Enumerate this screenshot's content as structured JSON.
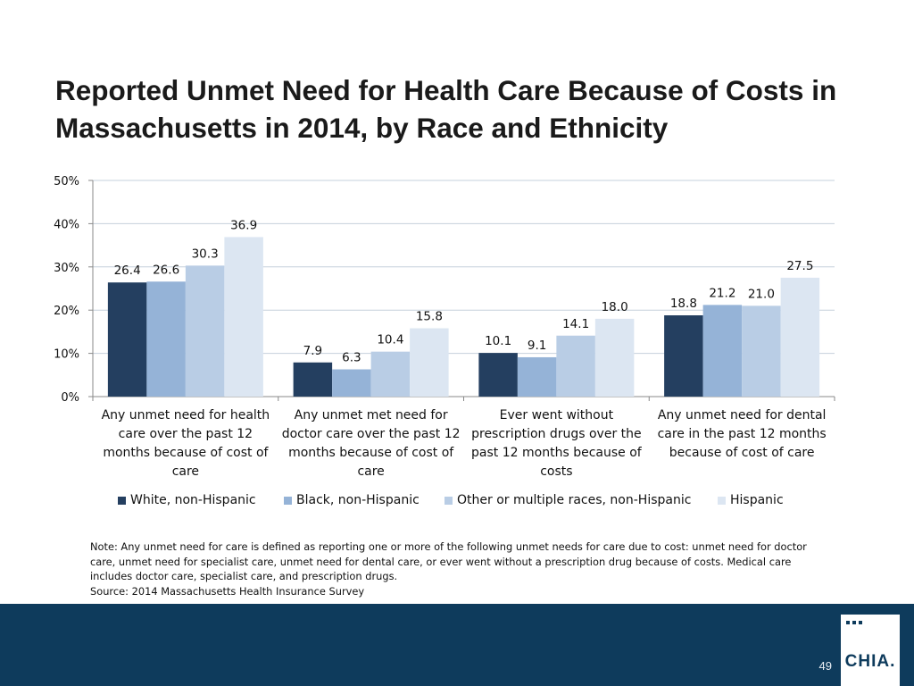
{
  "slide": {
    "title": "Reported Unmet Need for Health Care Because of Costs in Massachusetts in 2014, by Race and Ethnicity",
    "note": "Note: Any unmet need for care is defined as reporting one or more of the following unmet needs for care due to cost: unmet need for doctor care, unmet need for specialist care, unmet need for dental care, or ever went without a prescription drug because of costs. Medical care includes doctor care, specialist care, and prescription drugs.",
    "source": "Source:  2014 Massachusetts Health Insurance Survey",
    "page_number": "49",
    "logo_text": "CHIA."
  },
  "colors": {
    "series": [
      "#243f60",
      "#95b3d7",
      "#b9cde5",
      "#dce6f2"
    ],
    "grid": "#c6d0dc",
    "footer": "#0e3b5c"
  },
  "chart_data": {
    "type": "bar",
    "title": "Reported Unmet Need for Health Care Because of Costs in Massachusetts in 2014, by Race and Ethnicity",
    "categories": [
      "Any unmet need for health care over the past 12 months because of cost of care",
      "Any unmet met need for doctor care over the past 12 months because of cost of care",
      "Ever went without prescription drugs over the past 12 months because of costs",
      "Any unmet need for dental care in the past 12 months because of cost of care"
    ],
    "series": [
      {
        "name": "White, non-Hispanic",
        "values": [
          26.4,
          7.9,
          10.1,
          18.8
        ],
        "labels": [
          "26.4",
          "7.9",
          "10.1",
          "18.8"
        ]
      },
      {
        "name": "Black, non-Hispanic",
        "values": [
          26.6,
          6.3,
          9.1,
          21.2
        ],
        "labels": [
          "26.6",
          "6.3",
          "9.1",
          "21.2"
        ]
      },
      {
        "name": "Other or multiple races, non-Hispanic",
        "values": [
          30.3,
          10.4,
          14.1,
          21.0
        ],
        "labels": [
          "30.3",
          "10.4",
          "14.1",
          "21.0"
        ]
      },
      {
        "name": "Hispanic",
        "values": [
          36.9,
          15.8,
          18.0,
          27.5
        ],
        "labels": [
          "36.9",
          "15.8",
          "18.0",
          "27.5"
        ]
      }
    ],
    "y_ticks": [
      "0%",
      "10%",
      "20%",
      "30%",
      "40%",
      "50%"
    ],
    "y_tick_values": [
      0,
      10,
      20,
      30,
      40,
      50
    ],
    "ylim": [
      0,
      50
    ],
    "xlabel": "",
    "ylabel": "",
    "grid": true,
    "legend_position": "bottom"
  }
}
